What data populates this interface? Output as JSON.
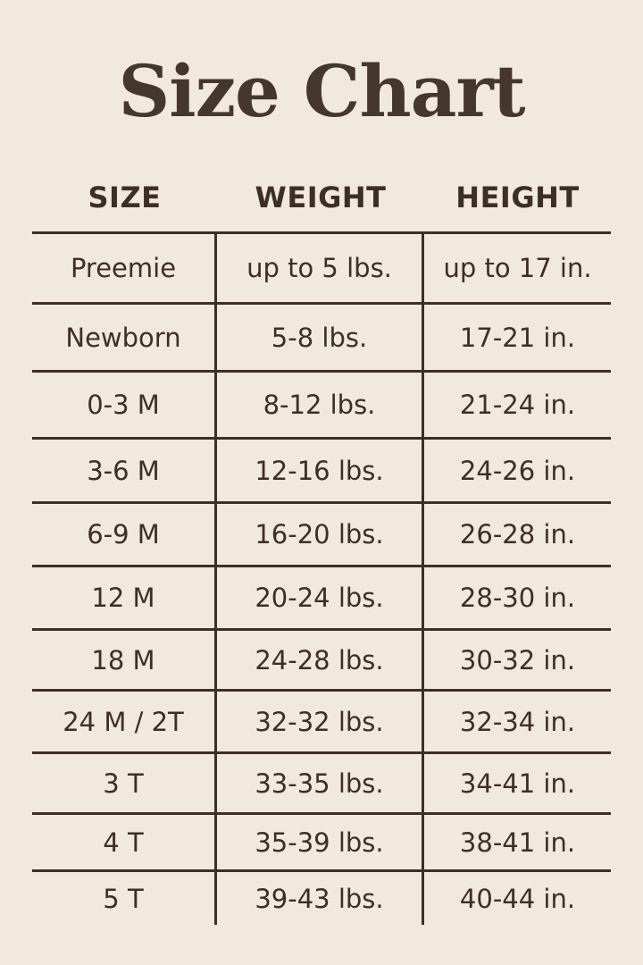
{
  "title": "Size Chart",
  "headers": [
    "SIZE",
    "WEIGHT",
    "HEIGHT"
  ],
  "rows": [
    [
      "Preemie",
      "up to 5 lbs.",
      "up to 17 in."
    ],
    [
      "Newborn",
      "5-8 lbs.",
      "17-21 in."
    ],
    [
      "0-3 M",
      "8-12 lbs.",
      "21-24 in."
    ],
    [
      "3-6 M",
      "12-16 lbs.",
      "24-26 in."
    ],
    [
      "6-9 M",
      "16-20 lbs.",
      "26-28 in."
    ],
    [
      "12 M",
      "20-24 lbs.",
      "28-30 in."
    ],
    [
      "18 M",
      "24-28 lbs.",
      "30-32 in."
    ],
    [
      "24 M / 2T",
      "32-32 lbs.",
      "32-34 in."
    ],
    [
      "3 T",
      "33-35 lbs.",
      "34-41 in."
    ],
    [
      "4 T",
      "35-39 lbs.",
      "38-41 in."
    ],
    [
      "5 T",
      "39-43 lbs.",
      "40-44 in."
    ]
  ],
  "colors": {
    "background": "#f2e9dd",
    "text": "#3d2f25"
  }
}
